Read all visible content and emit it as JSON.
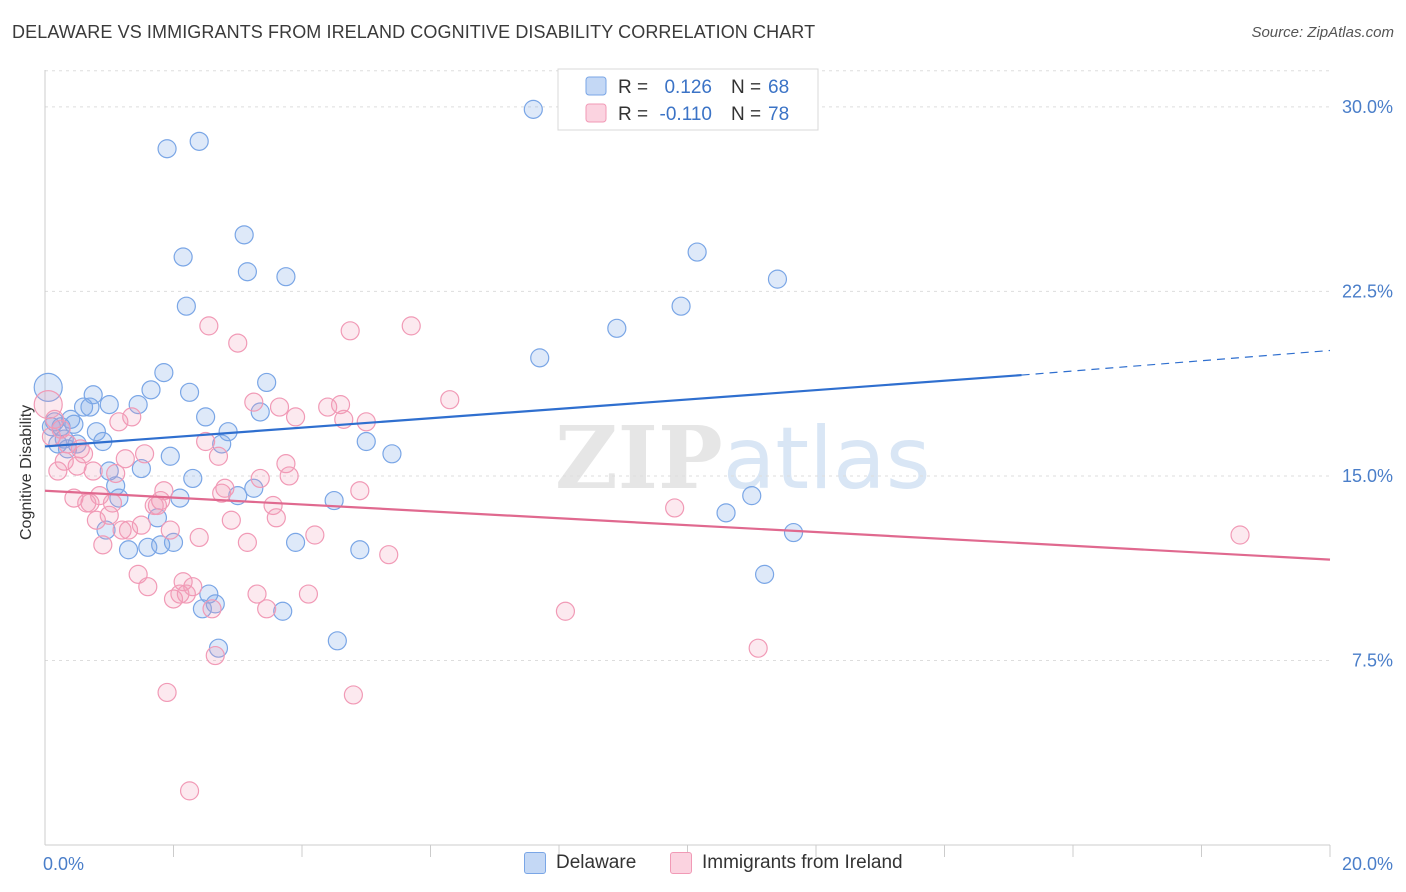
{
  "chart_data": {
    "type": "scatter",
    "title": "DELAWARE VS IMMIGRANTS FROM IRELAND COGNITIVE DISABILITY CORRELATION CHART",
    "source": "Source: ZipAtlas.com",
    "xlabel": "",
    "ylabel": "Cognitive Disability",
    "xlim": [
      0,
      20
    ],
    "ylim": [
      0,
      31.5
    ],
    "x_tick_labels": [
      "0.0%",
      "20.0%"
    ],
    "y_ticks": [
      7.5,
      15.0,
      22.5,
      30.0
    ],
    "y_tick_labels": [
      "7.5%",
      "15.0%",
      "22.5%",
      "30.0%"
    ],
    "watermark": "ZIPatlas",
    "legend": {
      "r_label": "R =",
      "n_label": "N =",
      "entries": [
        {
          "name": "Delaware",
          "r": "0.126",
          "n": "68",
          "color": "#7aa6e6"
        },
        {
          "name": "Immigrants from Ireland",
          "r": "-0.110",
          "n": "78",
          "color": "#f19ab6"
        }
      ]
    },
    "series": [
      {
        "name": "Delaware",
        "color": "#7aa6e6",
        "line_color": "#2f6fcf",
        "trend": {
          "x0": 0,
          "y0": 16.2,
          "x1": 15.2,
          "y1": 19.1,
          "dash_to_x": 20,
          "dash_to_y": 20.1
        },
        "points": [
          [
            0.05,
            18.6
          ],
          [
            0.1,
            17.0
          ],
          [
            0.15,
            17.2
          ],
          [
            0.2,
            16.3
          ],
          [
            0.25,
            17.0
          ],
          [
            0.3,
            16.5
          ],
          [
            0.35,
            16.1
          ],
          [
            0.45,
            17.1
          ],
          [
            0.5,
            16.3
          ],
          [
            0.6,
            17.8
          ],
          [
            0.7,
            17.8
          ],
          [
            0.75,
            18.3
          ],
          [
            0.8,
            16.8
          ],
          [
            0.9,
            16.4
          ],
          [
            0.95,
            12.8
          ],
          [
            1.0,
            15.2
          ],
          [
            1.1,
            14.6
          ],
          [
            1.15,
            14.1
          ],
          [
            1.3,
            12.0
          ],
          [
            1.45,
            17.9
          ],
          [
            1.5,
            15.3
          ],
          [
            1.6,
            12.1
          ],
          [
            1.65,
            18.5
          ],
          [
            1.75,
            13.3
          ],
          [
            1.8,
            12.2
          ],
          [
            1.85,
            19.2
          ],
          [
            1.9,
            28.3
          ],
          [
            1.95,
            15.8
          ],
          [
            2.1,
            14.1
          ],
          [
            2.15,
            23.9
          ],
          [
            2.2,
            21.9
          ],
          [
            2.25,
            18.4
          ],
          [
            2.3,
            14.9
          ],
          [
            2.4,
            28.6
          ],
          [
            2.45,
            9.6
          ],
          [
            2.5,
            17.4
          ],
          [
            2.55,
            10.2
          ],
          [
            2.65,
            9.8
          ],
          [
            2.7,
            8.0
          ],
          [
            2.75,
            16.3
          ],
          [
            2.85,
            16.8
          ],
          [
            3.0,
            14.2
          ],
          [
            3.1,
            24.8
          ],
          [
            3.15,
            23.3
          ],
          [
            3.25,
            14.5
          ],
          [
            3.35,
            17.6
          ],
          [
            3.45,
            18.8
          ],
          [
            3.7,
            9.5
          ],
          [
            3.75,
            23.1
          ],
          [
            3.9,
            12.3
          ],
          [
            4.5,
            14.0
          ],
          [
            4.55,
            8.3
          ],
          [
            4.9,
            12.0
          ],
          [
            5.0,
            16.4
          ],
          [
            5.4,
            15.9
          ],
          [
            7.6,
            29.9
          ],
          [
            7.7,
            19.8
          ],
          [
            8.9,
            21.0
          ],
          [
            9.9,
            21.9
          ],
          [
            10.15,
            24.1
          ],
          [
            10.6,
            13.5
          ],
          [
            11.0,
            14.2
          ],
          [
            11.2,
            11.0
          ],
          [
            11.4,
            23.0
          ],
          [
            11.65,
            12.7
          ],
          [
            2.0,
            12.3
          ],
          [
            1.0,
            17.9
          ],
          [
            0.4,
            17.3
          ]
        ]
      },
      {
        "name": "Immigrants from Ireland",
        "color": "#f19ab6",
        "line_color": "#e0698f",
        "trend": {
          "x0": 0,
          "y0": 14.4,
          "x1": 20,
          "y1": 11.6
        },
        "points": [
          [
            0.05,
            17.9
          ],
          [
            0.1,
            16.6
          ],
          [
            0.15,
            17.3
          ],
          [
            0.2,
            15.2
          ],
          [
            0.3,
            15.6
          ],
          [
            0.35,
            16.3
          ],
          [
            0.45,
            14.1
          ],
          [
            0.5,
            15.4
          ],
          [
            0.6,
            15.9
          ],
          [
            0.7,
            13.9
          ],
          [
            0.75,
            15.2
          ],
          [
            0.8,
            13.2
          ],
          [
            0.85,
            14.2
          ],
          [
            0.9,
            12.2
          ],
          [
            1.0,
            13.4
          ],
          [
            1.05,
            13.9
          ],
          [
            1.1,
            15.1
          ],
          [
            1.15,
            17.2
          ],
          [
            1.25,
            15.7
          ],
          [
            1.3,
            12.8
          ],
          [
            1.35,
            17.4
          ],
          [
            1.45,
            11.0
          ],
          [
            1.5,
            13.0
          ],
          [
            1.55,
            15.9
          ],
          [
            1.6,
            10.5
          ],
          [
            1.7,
            13.8
          ],
          [
            1.75,
            13.8
          ],
          [
            1.8,
            14.0
          ],
          [
            1.85,
            14.4
          ],
          [
            1.9,
            6.2
          ],
          [
            1.95,
            12.8
          ],
          [
            2.0,
            10.0
          ],
          [
            2.1,
            10.2
          ],
          [
            2.15,
            10.7
          ],
          [
            2.2,
            10.2
          ],
          [
            2.25,
            2.2
          ],
          [
            2.3,
            10.5
          ],
          [
            2.4,
            12.5
          ],
          [
            2.5,
            16.4
          ],
          [
            2.55,
            21.1
          ],
          [
            2.6,
            9.6
          ],
          [
            2.65,
            7.7
          ],
          [
            2.7,
            15.8
          ],
          [
            2.75,
            14.3
          ],
          [
            2.8,
            14.5
          ],
          [
            2.9,
            13.2
          ],
          [
            3.0,
            20.4
          ],
          [
            3.15,
            12.3
          ],
          [
            3.25,
            18.0
          ],
          [
            3.3,
            10.2
          ],
          [
            3.35,
            14.9
          ],
          [
            3.45,
            9.6
          ],
          [
            3.55,
            13.8
          ],
          [
            3.6,
            13.3
          ],
          [
            3.65,
            17.8
          ],
          [
            3.75,
            15.5
          ],
          [
            3.8,
            15.0
          ],
          [
            3.9,
            17.4
          ],
          [
            4.1,
            10.2
          ],
          [
            4.2,
            12.6
          ],
          [
            4.4,
            17.8
          ],
          [
            4.6,
            17.9
          ],
          [
            4.65,
            17.3
          ],
          [
            4.75,
            20.9
          ],
          [
            4.8,
            6.1
          ],
          [
            5.0,
            17.2
          ],
          [
            5.35,
            11.8
          ],
          [
            5.7,
            21.1
          ],
          [
            6.3,
            18.1
          ],
          [
            8.1,
            9.5
          ],
          [
            9.8,
            13.7
          ],
          [
            11.1,
            8.0
          ],
          [
            18.6,
            12.6
          ],
          [
            0.25,
            16.9
          ],
          [
            0.55,
            16.1
          ],
          [
            0.65,
            13.9
          ],
          [
            1.2,
            12.8
          ],
          [
            4.9,
            14.4
          ]
        ]
      }
    ]
  }
}
